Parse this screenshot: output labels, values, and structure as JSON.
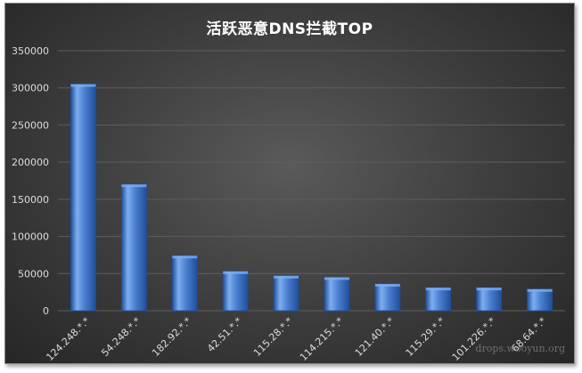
{
  "chart_data": {
    "type": "bar",
    "title": "活跃恶意DNS拦截TOP",
    "categories": [
      "124.248.*.*",
      "54.248.*.*",
      "182.92.*.*",
      "42.51.*.*",
      "115.28.*.*",
      "114.215.*.*",
      "121.40.*.*",
      "115.29.*.*",
      "101.226.*.*",
      "68.64.*.*"
    ],
    "values": [
      305000,
      170000,
      74000,
      53000,
      47000,
      45000,
      36000,
      31000,
      31000,
      29000
    ],
    "yticks": [
      "0",
      "50000",
      "100000",
      "150000",
      "200000",
      "250000",
      "300000",
      "350000"
    ],
    "ylim": [
      0,
      350000
    ],
    "xlabel": "",
    "ylabel": "",
    "grid": true,
    "legend": "none",
    "colors": {
      "bar": "#4a7fd0",
      "bar_light": "#7eaef0",
      "bar_dark": "#1f4f9a",
      "grid": "#5e5e5e",
      "axis_text": "#dcdcdc"
    }
  },
  "watermark": "drops.wooyun.org"
}
